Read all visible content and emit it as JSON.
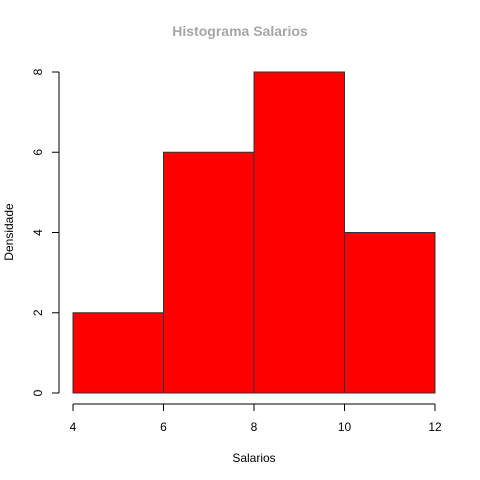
{
  "chart_data": {
    "type": "bar",
    "subtype": "histogram",
    "title": "Histograma Salarios",
    "xlabel": "Salarios",
    "ylabel": "Densidade",
    "bins": [
      {
        "from": 4,
        "to": 6,
        "value": 2
      },
      {
        "from": 6,
        "to": 8,
        "value": 6
      },
      {
        "from": 8,
        "to": 10,
        "value": 8
      },
      {
        "from": 10,
        "to": 12,
        "value": 4
      }
    ],
    "xlim": [
      4,
      12
    ],
    "ylim": [
      0,
      8
    ],
    "xticks": [
      4,
      6,
      8,
      10,
      12
    ],
    "yticks": [
      0,
      2,
      4,
      6,
      8
    ],
    "grid": false,
    "legend": "none",
    "colors": {
      "bar_fill": "#ff0000",
      "bar_border": "#333333",
      "title": "#a6a6a6"
    }
  }
}
